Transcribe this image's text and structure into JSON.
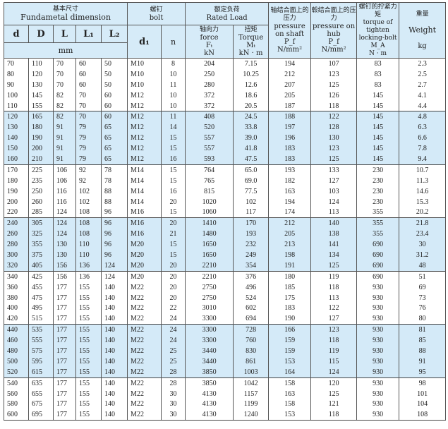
{
  "header": {
    "dim_zh": "基本尺寸",
    "dim_en": "Fundametal dimension",
    "dim_cols": [
      "d",
      "D",
      "L",
      "L₁",
      "L₂"
    ],
    "dim_unit": "mm",
    "bolt_zh": "螺钉",
    "bolt_en": "bolt",
    "bolt_cols": [
      "d₁",
      "n"
    ],
    "load_zh": "额定负荷",
    "load_en": "Rated Load",
    "force_zh": "轴向力",
    "force_en": "force",
    "force_sym": "Fₜ",
    "force_unit": "kN",
    "torque_zh": "扭矩",
    "torque_en": "Torque",
    "torque_sym": "Mₜ",
    "torque_unit": "kN · m",
    "shaft_zh": "轴结合面上的压力",
    "shaft_en": "pressure on shaft",
    "shaft_sym": "P_f",
    "shaft_unit": "N/mm²",
    "hub_zh": "毂结合面上的压力",
    "hub_en": "pressure on hub",
    "hub_sym": "P_f",
    "hub_unit": "N/mm²",
    "bolttq_zh": "螺钉的拧紧力矩",
    "bolttq_en": "torque of tighten locking-bolt",
    "bolttq_sym": "M_A",
    "bolttq_unit": "N · m",
    "weight_zh": "重量",
    "weight_en": "Weight",
    "weight_unit": "kg"
  },
  "row_highlight_color": "#d4eaf8",
  "rows": [
    [
      "70",
      "110",
      "70",
      "60",
      "50",
      "M10",
      "8",
      "204",
      "7.15",
      "194",
      "107",
      "83",
      "2.3"
    ],
    [
      "80",
      "120",
      "70",
      "60",
      "50",
      "M10",
      "10",
      "250",
      "10.25",
      "212",
      "123",
      "83",
      "2.5"
    ],
    [
      "90",
      "130",
      "70",
      "60",
      "50",
      "M10",
      "11",
      "280",
      "12.6",
      "207",
      "125",
      "83",
      "2.7"
    ],
    [
      "100",
      "145",
      "82",
      "70",
      "60",
      "M12",
      "10",
      "372",
      "18.6",
      "205",
      "126",
      "145",
      "4.1"
    ],
    [
      "110",
      "155",
      "82",
      "70",
      "60",
      "M12",
      "10",
      "372",
      "20.5",
      "187",
      "118",
      "145",
      "4.4"
    ],
    [
      "120",
      "165",
      "82",
      "70",
      "60",
      "M12",
      "11",
      "408",
      "24.5",
      "188",
      "122",
      "145",
      "4.8"
    ],
    [
      "130",
      "180",
      "91",
      "79",
      "65",
      "M12",
      "14",
      "520",
      "33.8",
      "197",
      "128",
      "145",
      "6.3"
    ],
    [
      "140",
      "190",
      "91",
      "79",
      "65",
      "M12",
      "15",
      "557",
      "39.0",
      "196",
      "130",
      "145",
      "6.6"
    ],
    [
      "150",
      "200",
      "91",
      "79",
      "65",
      "M12",
      "15",
      "557",
      "41.8",
      "183",
      "123",
      "145",
      "7.8"
    ],
    [
      "160",
      "210",
      "91",
      "79",
      "65",
      "M12",
      "16",
      "593",
      "47.5",
      "183",
      "125",
      "145",
      "9.4"
    ],
    [
      "170",
      "225",
      "106",
      "92",
      "78",
      "M14",
      "15",
      "764",
      "65.0",
      "193",
      "133",
      "230",
      "10.7"
    ],
    [
      "180",
      "235",
      "106",
      "92",
      "78",
      "M14",
      "15",
      "765",
      "69.0",
      "182",
      "127",
      "230",
      "11.3"
    ],
    [
      "190",
      "250",
      "116",
      "102",
      "88",
      "M14",
      "16",
      "815",
      "77.5",
      "163",
      "103",
      "230",
      "14.6"
    ],
    [
      "200",
      "260",
      "116",
      "102",
      "88",
      "M14",
      "20",
      "1020",
      "102",
      "194",
      "124",
      "230",
      "15.3"
    ],
    [
      "220",
      "285",
      "124",
      "108",
      "96",
      "M16",
      "15",
      "1060",
      "117",
      "174",
      "113",
      "355",
      "20.2"
    ],
    [
      "240",
      "305",
      "124",
      "108",
      "96",
      "M16",
      "20",
      "1410",
      "170",
      "212",
      "140",
      "355",
      "21.8"
    ],
    [
      "260",
      "325",
      "124",
      "108",
      "96",
      "M16",
      "21",
      "1480",
      "193",
      "205",
      "138",
      "355",
      "23.4"
    ],
    [
      "280",
      "355",
      "130",
      "110",
      "96",
      "M20",
      "15",
      "1650",
      "232",
      "213",
      "141",
      "690",
      "30"
    ],
    [
      "300",
      "375",
      "130",
      "110",
      "96",
      "M20",
      "15",
      "1650",
      "249",
      "198",
      "134",
      "690",
      "31.2"
    ],
    [
      "320",
      "405",
      "156",
      "136",
      "124",
      "M20",
      "20",
      "2210",
      "354",
      "191",
      "125",
      "690",
      "48"
    ],
    [
      "340",
      "425",
      "156",
      "136",
      "124",
      "M20",
      "20",
      "2210",
      "376",
      "180",
      "119",
      "690",
      "51"
    ],
    [
      "360",
      "455",
      "177",
      "155",
      "140",
      "M22",
      "20",
      "2750",
      "496",
      "185",
      "118",
      "930",
      "69"
    ],
    [
      "380",
      "475",
      "177",
      "155",
      "140",
      "M22",
      "20",
      "2750",
      "524",
      "175",
      "113",
      "930",
      "73"
    ],
    [
      "400",
      "495",
      "177",
      "155",
      "140",
      "M22",
      "22",
      "3010",
      "602",
      "183",
      "122",
      "930",
      "76"
    ],
    [
      "420",
      "515",
      "177",
      "155",
      "140",
      "M22",
      "24",
      "3300",
      "694",
      "190",
      "127",
      "930",
      "80"
    ],
    [
      "440",
      "535",
      "177",
      "155",
      "140",
      "M22",
      "24",
      "3300",
      "728",
      "166",
      "123",
      "930",
      "81"
    ],
    [
      "460",
      "555",
      "177",
      "155",
      "140",
      "M22",
      "24",
      "3300",
      "760",
      "159",
      "118",
      "930",
      "85"
    ],
    [
      "480",
      "575",
      "177",
      "155",
      "140",
      "M22",
      "25",
      "3440",
      "830",
      "159",
      "119",
      "930",
      "88"
    ],
    [
      "500",
      "595",
      "177",
      "155",
      "140",
      "M22",
      "25",
      "3440",
      "861",
      "153",
      "115",
      "930",
      "91"
    ],
    [
      "520",
      "615",
      "177",
      "155",
      "140",
      "M22",
      "28",
      "3850",
      "1003",
      "164",
      "124",
      "930",
      "95"
    ],
    [
      "540",
      "635",
      "177",
      "155",
      "140",
      "M22",
      "28",
      "3850",
      "1042",
      "158",
      "120",
      "930",
      "98"
    ],
    [
      "560",
      "655",
      "177",
      "155",
      "140",
      "M22",
      "30",
      "4130",
      "1157",
      "163",
      "125",
      "930",
      "101"
    ],
    [
      "580",
      "675",
      "177",
      "155",
      "140",
      "M22",
      "30",
      "4130",
      "1199",
      "158",
      "121",
      "930",
      "104"
    ],
    [
      "600",
      "695",
      "177",
      "155",
      "140",
      "M22",
      "30",
      "4130",
      "1240",
      "153",
      "118",
      "930",
      "108"
    ]
  ]
}
